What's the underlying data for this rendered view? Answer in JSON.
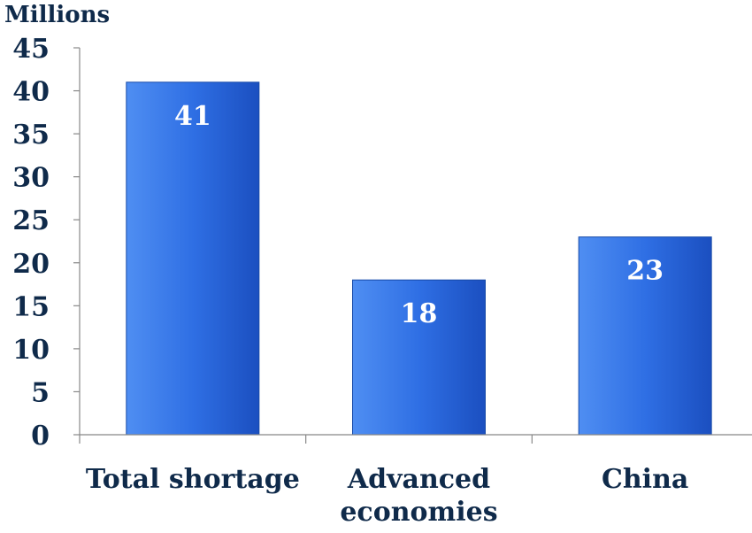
{
  "chart_data": {
    "type": "bar",
    "unit_label": "Millions",
    "categories": [
      "Total shortage",
      "Advanced economies",
      "China"
    ],
    "category_lines": [
      [
        "Total shortage"
      ],
      [
        "Advanced",
        "economies"
      ],
      [
        "China"
      ]
    ],
    "values": [
      41,
      18,
      23
    ],
    "data_labels": [
      "41",
      "18",
      "23"
    ],
    "ylim": [
      0,
      45
    ],
    "yticks": [
      0,
      5,
      10,
      15,
      20,
      25,
      30,
      35,
      40,
      45
    ],
    "grid": false,
    "legend": "none",
    "colors": {
      "bar_light": "#4f8ef2",
      "bar_mid": "#2f6fe4",
      "bar_dark": "#1b4fc0",
      "bar_edge": "#174aa8",
      "text": "#0f2a4a",
      "data_label": "#ffffff",
      "axis": "#888888"
    }
  }
}
